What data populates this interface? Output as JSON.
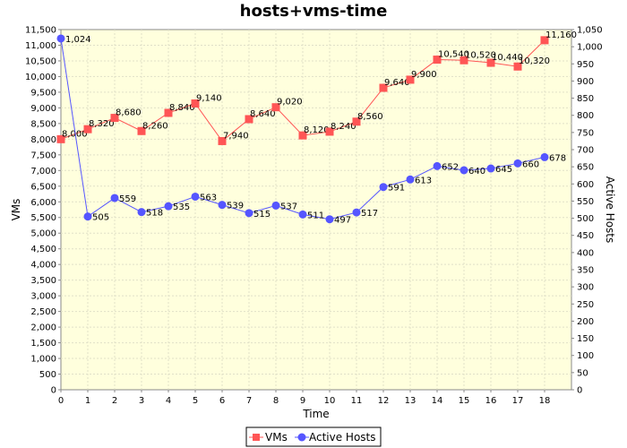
{
  "chart_data": {
    "type": "line",
    "title": "hosts+vms-time",
    "xlabel": "Time",
    "ylabel_left": "VMs",
    "ylabel_right": "Active Hosts",
    "x": [
      0,
      1,
      2,
      3,
      4,
      5,
      6,
      7,
      8,
      9,
      10,
      11,
      12,
      13,
      14,
      15,
      16,
      17,
      18
    ],
    "xlim": [
      0,
      19
    ],
    "ylim_left": [
      0,
      11500
    ],
    "ylim_right": [
      0,
      1050
    ],
    "grid": true,
    "legend_position": "bottom",
    "colors": {
      "plot_background": "#ffffdd",
      "grid": "#e0e0c8",
      "vms": "#ff5555",
      "hosts": "#5555ff"
    },
    "series": [
      {
        "name": "VMs",
        "axis": "left",
        "values": [
          8000,
          8320,
          8680,
          8260,
          8840,
          9140,
          7940,
          8640,
          9020,
          8120,
          8240,
          8560,
          9640,
          9900,
          10540,
          10520,
          10440,
          10320,
          11160
        ],
        "labels": [
          "8,000",
          "8,320",
          "8,680",
          "8,260",
          "8,840",
          "9,140",
          "7,940",
          "8,640",
          "9,020",
          "8,120",
          "8,240",
          "8,560",
          "9,640",
          "9,900",
          "10,540",
          "10,520",
          "10,440",
          "10,320",
          "11,160"
        ]
      },
      {
        "name": "Active Hosts",
        "axis": "right",
        "values": [
          1024,
          505,
          559,
          518,
          535,
          563,
          539,
          515,
          537,
          511,
          497,
          517,
          591,
          613,
          652,
          640,
          645,
          660,
          678
        ],
        "labels": [
          "1,024",
          "505",
          "559",
          "518",
          "535",
          "563",
          "539",
          "515",
          "537",
          "511",
          "497",
          "517",
          "591",
          "613",
          "652",
          "640",
          "645",
          "660",
          "678"
        ]
      }
    ],
    "left_ticks": [
      "0",
      "500",
      "1,000",
      "1,500",
      "2,000",
      "2,500",
      "3,000",
      "3,500",
      "4,000",
      "4,500",
      "5,000",
      "5,500",
      "6,000",
      "6,500",
      "7,000",
      "7,500",
      "8,000",
      "8,500",
      "9,000",
      "9,500",
      "10,000",
      "10,500",
      "11,000",
      "11,500"
    ],
    "right_ticks": [
      "0",
      "50",
      "100",
      "150",
      "200",
      "250",
      "300",
      "350",
      "400",
      "450",
      "500",
      "550",
      "600",
      "650",
      "700",
      "750",
      "800",
      "850",
      "900",
      "950",
      "1,000",
      "1,050"
    ],
    "x_ticks": [
      "0",
      "1",
      "2",
      "3",
      "4",
      "5",
      "6",
      "7",
      "8",
      "9",
      "10",
      "11",
      "12",
      "13",
      "14",
      "15",
      "16",
      "17",
      "18"
    ]
  }
}
